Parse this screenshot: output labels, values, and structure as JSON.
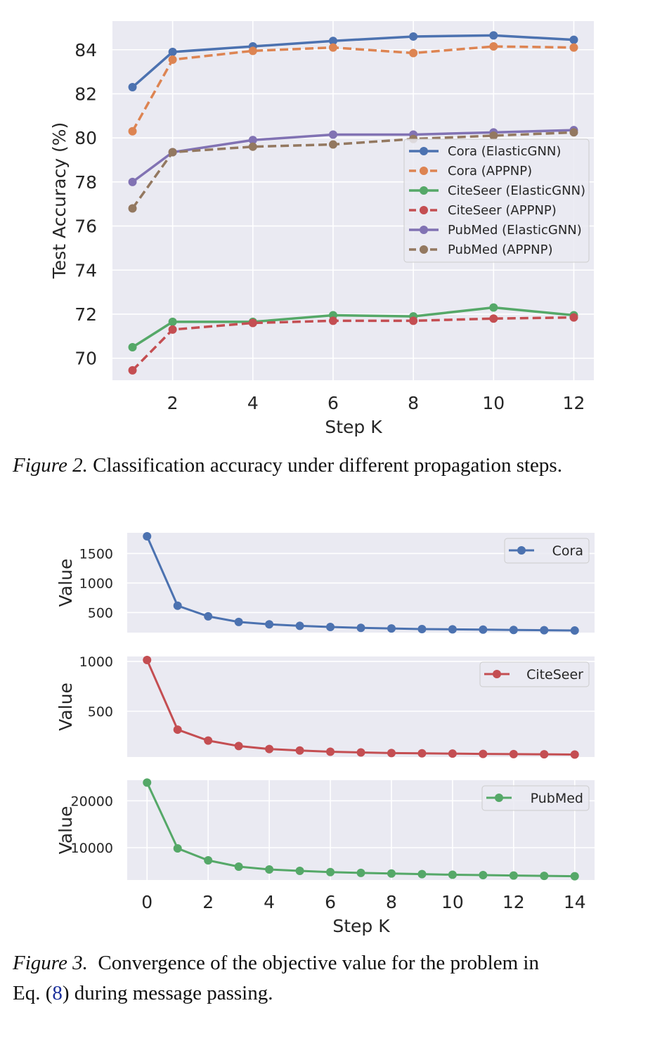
{
  "figure2": {
    "caption_label": "Figure 2.",
    "caption_text": "Classification accuracy under different propagation steps.",
    "chart_data": {
      "type": "line",
      "xlabel": "Step K",
      "ylabel": "Test Accuracy (%)",
      "x": [
        1,
        2,
        4,
        6,
        8,
        10,
        12
      ],
      "xticks": [
        2,
        4,
        6,
        8,
        10,
        12
      ],
      "yticks": [
        70,
        72,
        74,
        76,
        78,
        80,
        82,
        84
      ],
      "xlim": [
        0.5,
        12.5
      ],
      "ylim": [
        69.0,
        85.3
      ],
      "grid": true,
      "legend_position": "center-right",
      "series": [
        {
          "name": "Cora (ElasticGNN)",
          "color": "#4c72b0",
          "dashed": false,
          "values": [
            82.3,
            83.9,
            84.15,
            84.4,
            84.6,
            84.65,
            84.45
          ]
        },
        {
          "name": "Cora (APPNP)",
          "color": "#dd8452",
          "dashed": true,
          "values": [
            80.3,
            83.55,
            83.95,
            84.1,
            83.85,
            84.15,
            84.1
          ]
        },
        {
          "name": "CiteSeer (ElasticGNN)",
          "color": "#55a868",
          "dashed": false,
          "values": [
            70.5,
            71.65,
            71.65,
            71.95,
            71.9,
            72.3,
            71.95
          ]
        },
        {
          "name": "CiteSeer (APPNP)",
          "color": "#c44e52",
          "dashed": true,
          "values": [
            69.45,
            71.3,
            71.6,
            71.7,
            71.7,
            71.8,
            71.85
          ]
        },
        {
          "name": "PubMed (ElasticGNN)",
          "color": "#8172b3",
          "dashed": false,
          "values": [
            78.0,
            79.35,
            79.9,
            80.15,
            80.15,
            80.25,
            80.35
          ]
        },
        {
          "name": "PubMed (APPNP)",
          "color": "#937860",
          "dashed": true,
          "values": [
            76.8,
            79.35,
            79.6,
            79.7,
            79.95,
            80.1,
            80.25
          ]
        }
      ]
    }
  },
  "figure3": {
    "caption_label": "Figure 3.",
    "caption_line1": "Convergence of the objective value for the problem in",
    "caption_line2_pre": "Eq. (",
    "caption_ref": "8",
    "caption_line2_post": ") during message passing.",
    "chart_data": [
      {
        "type": "line",
        "ylabel": "Value",
        "xlabel": "",
        "x": [
          0,
          1,
          2,
          3,
          4,
          5,
          6,
          7,
          8,
          9,
          10,
          11,
          12,
          13,
          14
        ],
        "yticks": [
          500,
          1000,
          1500
        ],
        "ylim": [
          160,
          1850
        ],
        "grid": true,
        "legend_position": "top-right",
        "series": [
          {
            "name": "Cora",
            "color": "#4c72b0",
            "values": [
              1790,
              615,
              435,
              340,
              300,
              275,
              255,
              240,
              230,
              220,
              215,
              210,
              205,
              200,
              195
            ]
          }
        ]
      },
      {
        "type": "line",
        "ylabel": "Value",
        "xlabel": "",
        "x": [
          0,
          1,
          2,
          3,
          4,
          5,
          6,
          7,
          8,
          9,
          10,
          11,
          12,
          13,
          14
        ],
        "yticks": [
          500,
          1000
        ],
        "ylim": [
          40,
          1050
        ],
        "grid": true,
        "legend_position": "top-right",
        "series": [
          {
            "name": "CiteSeer",
            "color": "#c44e52",
            "values": [
              1015,
              315,
              205,
              150,
              120,
              105,
              93,
              86,
              80,
              77,
              74,
              71,
              69,
              67,
              65
            ]
          }
        ]
      },
      {
        "type": "line",
        "ylabel": "Value",
        "xlabel": "Step K",
        "x": [
          0,
          1,
          2,
          3,
          4,
          5,
          6,
          7,
          8,
          9,
          10,
          11,
          12,
          13,
          14
        ],
        "xticks": [
          0,
          2,
          4,
          6,
          8,
          10,
          12,
          14
        ],
        "yticks": [
          10000,
          20000
        ],
        "ylim": [
          3100,
          24400
        ],
        "xlim": [
          -0.65,
          14.65
        ],
        "grid": true,
        "legend_position": "top-right",
        "series": [
          {
            "name": "PubMed",
            "color": "#55a868",
            "values": [
              23900,
              9850,
              7300,
              5950,
              5350,
              5050,
              4780,
              4620,
              4480,
              4350,
              4230,
              4150,
              4050,
              3980,
              3900
            ]
          }
        ]
      }
    ]
  }
}
